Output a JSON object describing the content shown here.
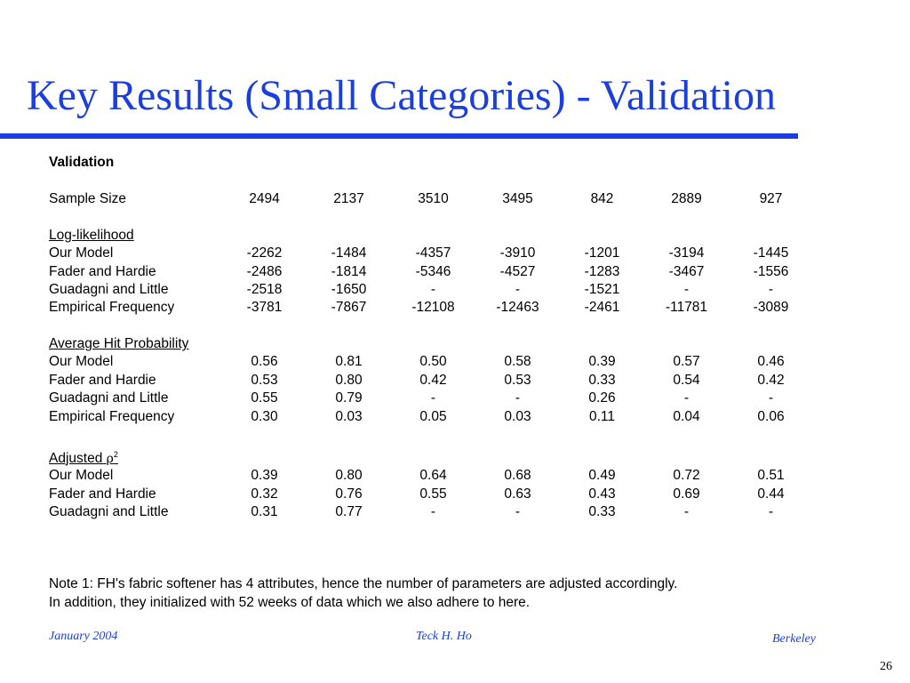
{
  "slide": {
    "title": "Key Results (Small Categories) - Validation",
    "accent_color": "#1a3ee0"
  },
  "table": {
    "heading": "Validation",
    "sample_size": {
      "label": "Sample Size",
      "values": [
        "2494",
        "2137",
        "3510",
        "3495",
        "842",
        "2889",
        "927"
      ]
    },
    "sections": [
      {
        "title": "Log-likelihood",
        "rows": [
          {
            "label": "Our Model",
            "values": [
              "-2262",
              "-1484",
              "-4357",
              "-3910",
              "-1201",
              "-3194",
              "-1445"
            ]
          },
          {
            "label": "Fader and Hardie",
            "values": [
              "-2486",
              "-1814",
              "-5346",
              "-4527",
              "-1283",
              "-3467",
              "-1556"
            ]
          },
          {
            "label": "Guadagni and Little",
            "values": [
              "-2518",
              "-1650",
              "-",
              "-",
              "-1521",
              "-",
              "-"
            ]
          },
          {
            "label": "Empirical Frequency",
            "values": [
              "-3781",
              "-7867",
              "-12108",
              "-12463",
              "-2461",
              "-11781",
              "-3089"
            ]
          }
        ]
      },
      {
        "title": "Average Hit Probability",
        "rows": [
          {
            "label": "Our Model",
            "values": [
              "0.56",
              "0.81",
              "0.50",
              "0.58",
              "0.39",
              "0.57",
              "0.46"
            ]
          },
          {
            "label": "Fader and Hardie",
            "values": [
              "0.53",
              "0.80",
              "0.42",
              "0.53",
              "0.33",
              "0.54",
              "0.42"
            ]
          },
          {
            "label": "Guadagni and Little",
            "values": [
              "0.55",
              "0.79",
              "-",
              "-",
              "0.26",
              "-",
              "-"
            ]
          },
          {
            "label": "Empirical Frequency",
            "values": [
              "0.30",
              "0.03",
              "0.05",
              "0.03",
              "0.11",
              "0.04",
              "0.06"
            ]
          }
        ]
      },
      {
        "title": "Adjusted ",
        "title_symbol": "ρ",
        "title_superscript": "2",
        "rows": [
          {
            "label": "Our Model",
            "values": [
              "0.39",
              "0.80",
              "0.64",
              "0.68",
              "0.49",
              "0.72",
              "0.51"
            ]
          },
          {
            "label": "Fader and Hardie",
            "values": [
              "0.32",
              "0.76",
              "0.55",
              "0.63",
              "0.43",
              "0.69",
              "0.44"
            ]
          },
          {
            "label": "Guadagni and Little",
            "values": [
              "0.31",
              "0.77",
              "-",
              "-",
              "0.33",
              "-",
              "-"
            ]
          }
        ]
      }
    ]
  },
  "note": {
    "line1": "Note 1: FH's fabric softener has 4 attributes, hence the number of parameters are adjusted accordingly.",
    "line2": "In addition, they initialized with 52 weeks of data which we also adhere to here."
  },
  "footer": {
    "date": "January  2004",
    "author": "Teck H. Ho",
    "org": "Berkeley",
    "page": "26"
  }
}
